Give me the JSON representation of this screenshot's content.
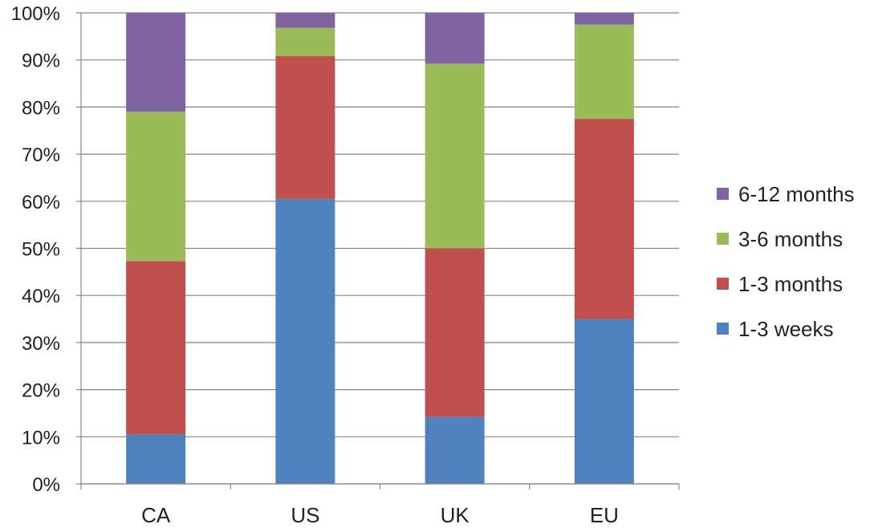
{
  "chart_data": {
    "type": "bar",
    "stacked": true,
    "percent": true,
    "categories": [
      "CA",
      "US",
      "UK",
      "EU"
    ],
    "series": [
      {
        "name": "1-3 weeks",
        "color": "#4f81bd",
        "values": [
          10.5,
          60.5,
          14.2,
          35.0
        ]
      },
      {
        "name": "1-3 months",
        "color": "#c0504d",
        "values": [
          36.8,
          30.3,
          35.8,
          42.5
        ]
      },
      {
        "name": "3-6 months",
        "color": "#9bbb59",
        "values": [
          31.7,
          6.0,
          39.2,
          20.0
        ]
      },
      {
        "name": "6-12 months",
        "color": "#8064a2",
        "values": [
          21.0,
          3.2,
          10.8,
          2.5
        ]
      }
    ],
    "ylim": [
      0,
      100
    ],
    "yticks": [
      "0%",
      "10%",
      "20%",
      "30%",
      "40%",
      "50%",
      "60%",
      "70%",
      "80%",
      "90%",
      "100%"
    ],
    "grid": true,
    "legend_position": "right",
    "title": "",
    "xlabel": "",
    "ylabel": ""
  }
}
